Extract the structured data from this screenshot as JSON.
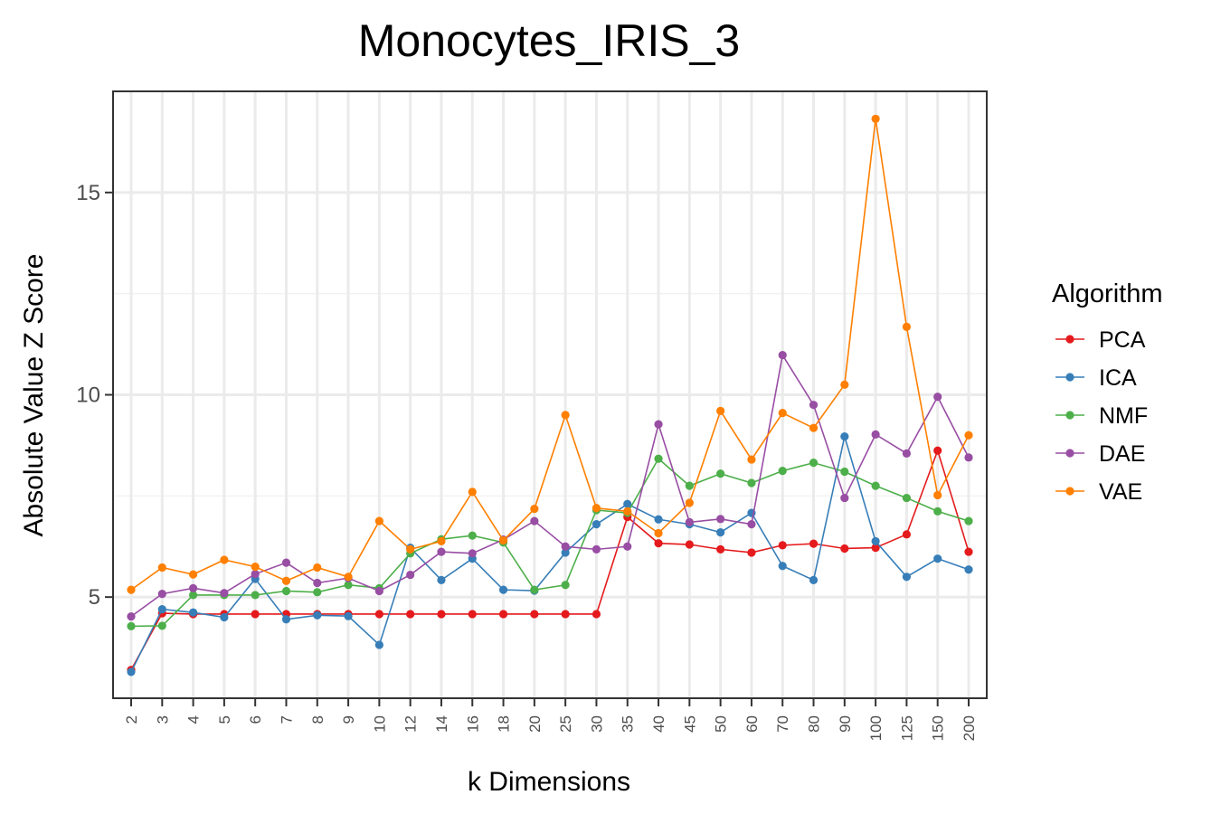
{
  "chart_data": {
    "type": "line",
    "title": "Monocytes_IRIS_3",
    "xlabel": "k Dimensions",
    "ylabel": "Absolute Value Z Score",
    "ylim": [
      2.5,
      17.5
    ],
    "yticks": [
      5,
      10,
      15
    ],
    "ytick_labels": [
      "5",
      "10",
      "15"
    ],
    "grid": true,
    "legend_title": "Algorithm",
    "legend_position": "right",
    "categories": [
      "2",
      "3",
      "4",
      "5",
      "6",
      "7",
      "8",
      "9",
      "10",
      "12",
      "14",
      "16",
      "18",
      "20",
      "25",
      "30",
      "35",
      "40",
      "45",
      "50",
      "60",
      "70",
      "80",
      "90",
      "100",
      "125",
      "150",
      "200"
    ],
    "series": [
      {
        "name": "PCA",
        "color": "#e41a1c",
        "values": [
          3.2,
          4.6,
          4.58,
          4.58,
          4.58,
          4.58,
          4.58,
          4.58,
          4.58,
          4.58,
          4.58,
          4.58,
          4.58,
          4.58,
          4.58,
          4.58,
          6.98,
          6.33,
          6.3,
          6.18,
          6.1,
          6.28,
          6.32,
          6.2,
          6.22,
          6.55,
          8.62,
          6.12
        ]
      },
      {
        "name": "ICA",
        "color": "#377eb8",
        "values": [
          3.15,
          4.7,
          4.62,
          4.5,
          5.45,
          4.45,
          4.55,
          4.53,
          3.82,
          6.22,
          5.42,
          5.95,
          5.18,
          5.16,
          6.1,
          6.8,
          7.3,
          6.92,
          6.8,
          6.6,
          7.08,
          5.77,
          5.42,
          8.97,
          6.38,
          5.5,
          5.95,
          5.68
        ]
      },
      {
        "name": "NMF",
        "color": "#4daf4a",
        "values": [
          4.28,
          4.29,
          5.05,
          5.05,
          5.05,
          5.15,
          5.12,
          5.3,
          5.22,
          6.08,
          6.43,
          6.52,
          6.35,
          5.18,
          5.3,
          7.15,
          7.08,
          8.42,
          7.75,
          8.05,
          7.82,
          8.12,
          8.32,
          8.1,
          7.75,
          7.45,
          7.12,
          6.88
        ]
      },
      {
        "name": "DAE",
        "color": "#984ea3",
        "values": [
          4.52,
          5.08,
          5.22,
          5.1,
          5.57,
          5.85,
          5.35,
          5.47,
          5.15,
          5.55,
          6.12,
          6.08,
          6.42,
          6.88,
          6.25,
          6.18,
          6.25,
          9.27,
          6.85,
          6.93,
          6.8,
          10.98,
          9.75,
          7.45,
          9.02,
          8.55,
          9.95,
          8.45
        ]
      },
      {
        "name": "VAE",
        "color": "#ff7f00",
        "values": [
          5.18,
          5.73,
          5.56,
          5.92,
          5.75,
          5.4,
          5.73,
          5.5,
          6.88,
          6.18,
          6.38,
          7.6,
          6.4,
          7.18,
          9.5,
          7.2,
          7.12,
          6.58,
          7.33,
          9.6,
          8.4,
          9.55,
          9.18,
          10.25,
          16.82,
          11.68,
          7.52,
          9.0
        ]
      }
    ]
  }
}
